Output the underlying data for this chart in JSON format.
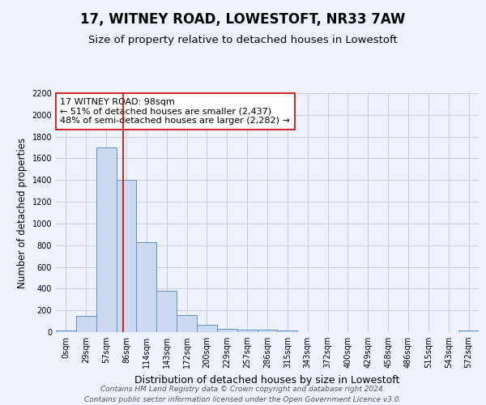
{
  "title": "17, WITNEY ROAD, LOWESTOFT, NR33 7AW",
  "subtitle": "Size of property relative to detached houses in Lowestoft",
  "xlabel": "Distribution of detached houses by size in Lowestoft",
  "ylabel": "Number of detached properties",
  "bar_values": [
    15,
    150,
    1700,
    1400,
    830,
    380,
    160,
    65,
    30,
    20,
    20,
    15,
    0,
    0,
    0,
    0,
    0,
    0,
    0,
    0,
    15
  ],
  "bar_labels": [
    "0sqm",
    "29sqm",
    "57sqm",
    "86sqm",
    "114sqm",
    "143sqm",
    "172sqm",
    "200sqm",
    "229sqm",
    "257sqm",
    "286sqm",
    "315sqm",
    "343sqm",
    "372sqm",
    "400sqm",
    "429sqm",
    "458sqm",
    "486sqm",
    "515sqm",
    "543sqm",
    "572sqm"
  ],
  "bar_color": "#ccd9f0",
  "bar_edge_color": "#6090c0",
  "vline_x_index": 3.35,
  "vline_color": "#cc0000",
  "annotation_box_text": "17 WITNEY ROAD: 98sqm\n← 51% of detached houses are smaller (2,437)\n48% of semi-detached houses are larger (2,282) →",
  "annotation_box_color": "#cc0000",
  "ylim": [
    0,
    2200
  ],
  "yticks": [
    0,
    200,
    400,
    600,
    800,
    1000,
    1200,
    1400,
    1600,
    1800,
    2000,
    2200
  ],
  "background_color": "#eef2fc",
  "grid_color": "#c0c8dc",
  "footer_line1": "Contains HM Land Registry data © Crown copyright and database right 2024.",
  "footer_line2": "Contains public sector information licensed under the Open Government Licence v3.0.",
  "title_fontsize": 12,
  "subtitle_fontsize": 9.5,
  "xlabel_fontsize": 9,
  "ylabel_fontsize": 8.5,
  "tick_fontsize": 7,
  "annotation_fontsize": 8,
  "footer_fontsize": 6.5
}
